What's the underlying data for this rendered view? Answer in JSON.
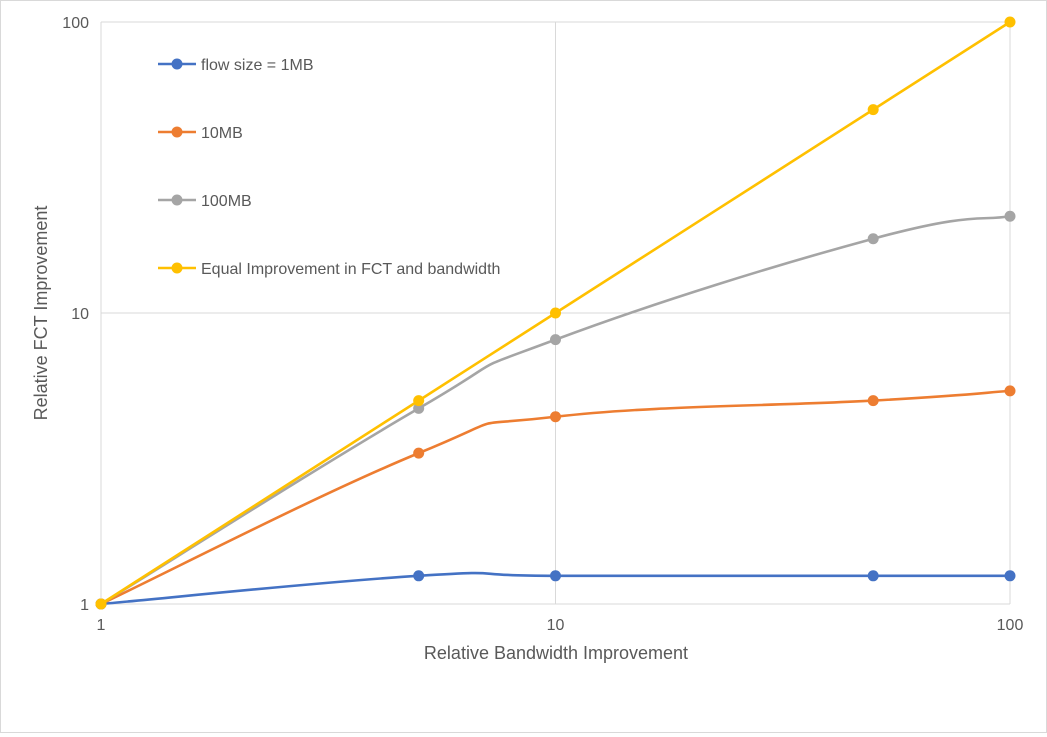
{
  "chart_data": {
    "type": "line",
    "title": "",
    "xlabel": "Relative Bandwidth Improvement",
    "ylabel": "Relative FCT Improvement",
    "x_scale": "log",
    "y_scale": "log",
    "xlim": [
      1,
      100
    ],
    "ylim": [
      1,
      100
    ],
    "x_ticks": [
      1,
      10,
      100
    ],
    "y_ticks": [
      1,
      10,
      100
    ],
    "x_tick_labels": [
      "1",
      "10",
      "100"
    ],
    "y_tick_labels": [
      "1",
      "10",
      "100"
    ],
    "grid": true,
    "legend_position": "top-left",
    "x": [
      1,
      5,
      10,
      50,
      100
    ],
    "series": [
      {
        "name": "flow size = 1MB",
        "color": "#4472c4",
        "values": [
          1,
          1.25,
          1.25,
          1.25,
          1.25
        ]
      },
      {
        "name": "10MB",
        "color": "#ed7d31",
        "values": [
          1,
          3.3,
          4.4,
          5,
          5.4
        ]
      },
      {
        "name": "100MB",
        "color": "#a5a5a5",
        "values": [
          1,
          4.7,
          8.1,
          18,
          21.5
        ]
      },
      {
        "name": "Equal Improvement in FCT and bandwidth",
        "color": "#ffc000",
        "values": [
          1,
          5,
          10,
          50,
          100
        ]
      }
    ]
  }
}
